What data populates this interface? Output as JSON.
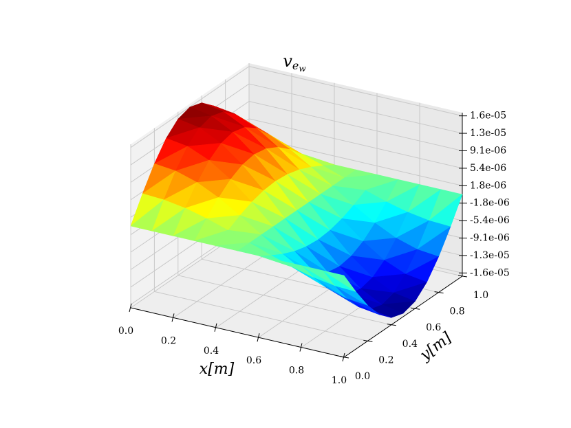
{
  "chart_data": {
    "type": "surface3d",
    "title": {
      "base": "v",
      "sub": "e",
      "subsub": "w"
    },
    "x_label": "x[m]",
    "y_label": "y[m]",
    "colormap": "jet",
    "grid": true,
    "x": [
      0,
      0.1,
      0.2,
      0.3,
      0.4,
      0.5,
      0.6,
      0.7,
      0.8,
      0.9,
      1
    ],
    "y": [
      0,
      0.1,
      0.2,
      0.3,
      0.4,
      0.5,
      0.6,
      0.7,
      0.8,
      0.9,
      1
    ],
    "z": [
      [
        0,
        5.04e-06,
        9.58e-06,
        1.319e-05,
        1.55e-05,
        1.63e-05,
        1.55e-05,
        1.319e-05,
        9.58e-06,
        5.04e-06,
        0
      ],
      [
        0,
        4.79e-06,
        9.11e-06,
        1.254e-05,
        1.474e-05,
        1.55e-05,
        1.474e-05,
        1.254e-05,
        9.11e-06,
        4.79e-06,
        0
      ],
      [
        0,
        4.08e-06,
        7.75e-06,
        1.067e-05,
        1.254e-05,
        1.319e-05,
        1.254e-05,
        1.067e-05,
        7.75e-06,
        4.08e-06,
        0
      ],
      [
        0,
        2.96e-06,
        5.63e-06,
        7.76e-06,
        9.11e-06,
        9.58e-06,
        9.11e-06,
        7.76e-06,
        5.63e-06,
        2.96e-06,
        0
      ],
      [
        0,
        1.56e-06,
        2.96e-06,
        4.08e-06,
        4.79e-06,
        5.04e-06,
        4.79e-06,
        4.08e-06,
        2.96e-06,
        1.56e-06,
        0
      ],
      [
        0,
        0,
        0,
        0,
        0,
        0,
        0,
        0,
        0,
        0,
        0
      ],
      [
        0,
        -1.56e-06,
        -2.96e-06,
        -4.08e-06,
        -4.79e-06,
        -5.04e-06,
        -4.79e-06,
        -4.08e-06,
        -2.96e-06,
        -1.56e-06,
        0
      ],
      [
        0,
        -2.96e-06,
        -5.63e-06,
        -7.76e-06,
        -9.11e-06,
        -9.58e-06,
        -9.11e-06,
        -7.76e-06,
        -5.63e-06,
        -2.96e-06,
        0
      ],
      [
        0,
        -4.08e-06,
        -7.75e-06,
        -1.067e-05,
        -1.254e-05,
        -1.319e-05,
        -1.254e-05,
        -1.067e-05,
        -7.75e-06,
        -4.08e-06,
        0
      ],
      [
        0,
        -4.79e-06,
        -9.11e-06,
        -1.254e-05,
        -1.474e-05,
        -1.55e-05,
        -1.474e-05,
        -1.254e-05,
        -9.11e-06,
        -4.79e-06,
        0
      ],
      [
        0,
        -5.04e-06,
        -9.58e-06,
        -1.319e-05,
        -1.55e-05,
        -1.63e-05,
        -1.55e-05,
        -1.319e-05,
        -9.58e-06,
        -5.04e-06,
        0
      ]
    ],
    "xlim": [
      0,
      1
    ],
    "ylim": [
      0,
      1
    ],
    "zlim": [
      -1.7e-05,
      1.7e-05
    ],
    "xticks": [
      {
        "value": 0,
        "label": "0.0"
      },
      0.2,
      0.4,
      0.6,
      0.8,
      {
        "value": 1,
        "label": "1.0"
      }
    ],
    "yticks": [
      {
        "value": 0,
        "label": "0.0"
      },
      0.2,
      0.4,
      0.6,
      0.8,
      {
        "value": 1,
        "label": "1.0"
      }
    ],
    "zticks": [
      {
        "value": -1.6335e-05,
        "label": "-1.6e-05"
      },
      {
        "value": -1.2705e-05,
        "label": "-1.3e-05"
      },
      {
        "value": -9.075e-06,
        "label": "-9.1e-06"
      },
      {
        "value": -5.445e-06,
        "label": "-5.4e-06"
      },
      {
        "value": -1.815e-06,
        "label": "-1.8e-06"
      },
      {
        "value": 1.815e-06,
        "label": "1.8e-06"
      },
      {
        "value": 5.445e-06,
        "label": "5.4e-06"
      },
      {
        "value": 9.075e-06,
        "label": "9.1e-06"
      },
      {
        "value": 1.2705e-05,
        "label": "1.3e-05"
      },
      {
        "value": 1.6335e-05,
        "label": "1.6e-05"
      }
    ]
  }
}
